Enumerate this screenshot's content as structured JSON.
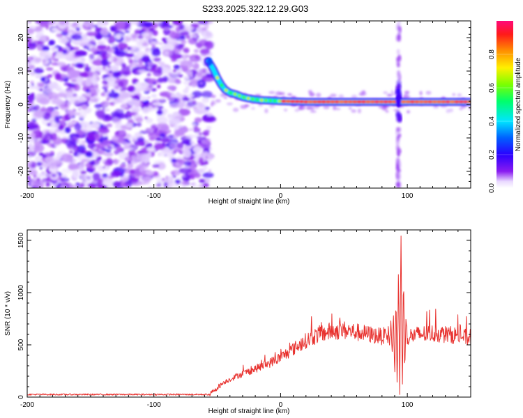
{
  "figure": {
    "title": "S233.2025.322.12.29.G03"
  },
  "colors": {
    "background": "#ffffff",
    "axis": "#000000",
    "snr_line": "#e8322f",
    "noise_purple": "#8a1cf0"
  },
  "chart_data": [
    {
      "id": "spectrogram",
      "type": "heatmap",
      "xlabel": "Height of straight line (km)",
      "ylabel": "Frequency (Hz)",
      "xlim": [
        -200,
        150
      ],
      "ylim": [
        -25,
        25
      ],
      "xticks": [
        -200,
        -100,
        0,
        100
      ],
      "yticks": [
        -20,
        -10,
        0,
        10,
        20
      ],
      "colorbar": {
        "label": "Normalized spectral amplitude",
        "range": [
          0.0,
          1.0
        ],
        "ticks": [
          "0.0",
          "0.2",
          "0.4",
          "0.6",
          "0.8"
        ],
        "colormap": [
          "#ffffff",
          "#7a00ff",
          "#0000ff",
          "#00ffff",
          "#00ff00",
          "#ffff00",
          "#ff8000",
          "#ff0000",
          "#ff1493"
        ]
      },
      "noise_region_x": [
        -200,
        -55
      ],
      "main_trace": {
        "x": [
          -57,
          -53,
          -50,
          -47,
          -44,
          -40,
          -35,
          -30,
          -25,
          -20,
          -15,
          -10,
          -5,
          0,
          10,
          20,
          40,
          60,
          80,
          100,
          120,
          150
        ],
        "y": [
          13,
          10.5,
          8,
          6,
          4.5,
          3.5,
          3,
          2.2,
          1.8,
          1.5,
          1.3,
          1.2,
          1.1,
          1.0,
          0.9,
          0.8,
          0.8,
          0.8,
          0.8,
          0.8,
          0.8,
          0.8
        ]
      },
      "vertical_feature_x": 93
    },
    {
      "id": "snr",
      "type": "line",
      "xlabel": "Height of straight line (km)",
      "ylabel": "SNR (10 * v/v)",
      "xlim": [
        -200,
        150
      ],
      "ylim": [
        0,
        1600
      ],
      "xticks": [
        -200,
        -100,
        0,
        100
      ],
      "yticks": [
        0,
        500,
        1000,
        1500
      ],
      "envelope": {
        "x": [
          -200,
          -56,
          -52,
          -45,
          -35,
          -20,
          -10,
          0,
          10,
          20,
          30,
          40,
          50,
          60,
          70,
          80,
          85,
          90,
          95,
          100,
          110,
          120,
          130,
          140,
          150
        ],
        "y": [
          25,
          25,
          70,
          140,
          200,
          270,
          320,
          380,
          460,
          540,
          600,
          630,
          640,
          620,
          600,
          580,
          600,
          560,
          700,
          580,
          600,
          610,
          600,
          590,
          560
        ]
      },
      "spike": {
        "x": [
          85,
          86,
          87,
          88,
          89,
          90,
          91,
          92,
          93,
          94,
          95,
          96,
          97,
          98,
          99,
          100
        ],
        "y": [
          650,
          460,
          760,
          380,
          820,
          160,
          980,
          60,
          1250,
          40,
          1600,
          70,
          1150,
          250,
          800,
          520
        ]
      }
    }
  ]
}
